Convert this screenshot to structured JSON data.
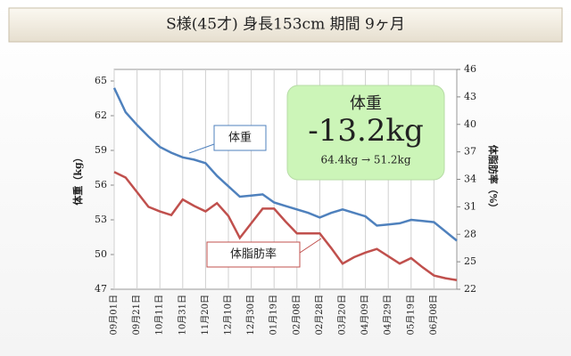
{
  "chart_data": {
    "type": "line",
    "title": "S様(45才) 身長153cm 期間 9ヶ月",
    "ylabel": "体重（kg）",
    "y2label": "体脂肪率（%）",
    "categories": [
      "09月01日",
      null,
      "09月21日",
      null,
      "10月11日",
      null,
      "10月31日",
      null,
      "11月20日",
      null,
      "12月10日",
      null,
      "12月30日",
      null,
      "01月19日",
      null,
      "02月08日",
      null,
      "02月28日",
      null,
      "03月20日",
      null,
      "04月09日",
      null,
      "04月29日",
      null,
      "05月19日",
      null,
      "06月08日",
      null,
      null
    ],
    "series": [
      {
        "name": "体重",
        "color": "#4f81bd",
        "axis": "y",
        "values": [
          64.4,
          62.3,
          61.2,
          60.2,
          59.3,
          58.8,
          58.4,
          58.2,
          57.9,
          56.8,
          55.9,
          55.0,
          55.1,
          55.2,
          54.5,
          54.2,
          53.9,
          53.6,
          53.2,
          53.6,
          53.9,
          53.6,
          53.3,
          52.5,
          52.6,
          52.7,
          53.0,
          52.9,
          52.8,
          52.0,
          51.2
        ]
      },
      {
        "name": "体脂肪率",
        "color": "#c0504d",
        "axis": "y2",
        "values": [
          34.8,
          34.2,
          32.6,
          31.0,
          30.5,
          30.1,
          31.8,
          31.1,
          30.5,
          31.4,
          30.0,
          27.6,
          29.2,
          30.8,
          30.8,
          29.4,
          28.1,
          28.1,
          28.1,
          26.5,
          24.8,
          25.5,
          26.0,
          26.4,
          25.6,
          24.8,
          25.4,
          24.4,
          23.5,
          23.2,
          23.0
        ]
      }
    ],
    "ylim": [
      47,
      66
    ],
    "yticks": [
      47,
      50,
      53,
      56,
      59,
      62,
      65
    ],
    "y2lim": [
      22,
      46
    ],
    "y2ticks": [
      22,
      25,
      28,
      31,
      34,
      37,
      40,
      43,
      46
    ],
    "grid": true,
    "annotations": [
      "体重",
      "体脂肪率"
    ],
    "summary": {
      "label": "体重",
      "change": "-13.2kg",
      "detail": "64.4kg → 51.2kg"
    }
  }
}
